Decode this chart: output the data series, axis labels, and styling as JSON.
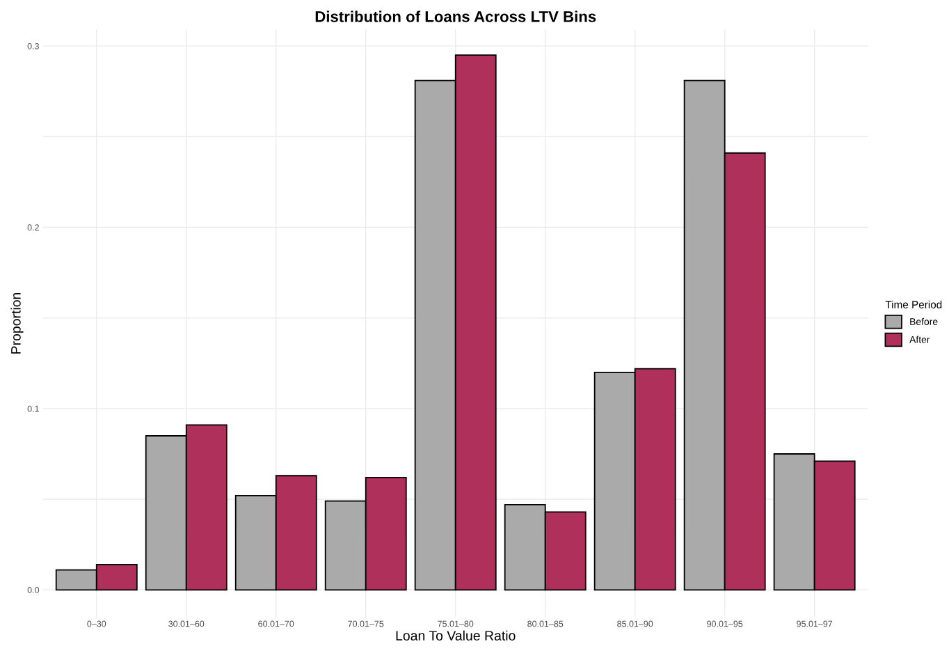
{
  "chart_data": {
    "type": "bar",
    "title": "Distribution of Loans Across LTV Bins",
    "xlabel": "Loan To Value Ratio",
    "ylabel": "Proportion",
    "legend_title": "Time Period",
    "categories": [
      "0–30",
      "30.01–60",
      "60.01–70",
      "70.01–75",
      "75.01–80",
      "80.01–85",
      "85.01–90",
      "90.01–95",
      "95.01–97"
    ],
    "series": [
      {
        "name": "Before",
        "color": "#aaaaaa",
        "values": [
          0.011,
          0.085,
          0.052,
          0.049,
          0.281,
          0.047,
          0.12,
          0.281,
          0.075
        ]
      },
      {
        "name": "After",
        "color": "#b0305c",
        "values": [
          0.014,
          0.091,
          0.063,
          0.062,
          0.295,
          0.043,
          0.122,
          0.241,
          0.071
        ]
      }
    ],
    "ylim": [
      -0.015,
      0.309
    ],
    "yticks": [
      {
        "value": 0.0,
        "label": "0.0"
      },
      {
        "value": 0.05,
        "label": null
      },
      {
        "value": 0.1,
        "label": "0.1"
      },
      {
        "value": 0.15,
        "label": null
      },
      {
        "value": 0.2,
        "label": "0.2"
      },
      {
        "value": 0.25,
        "label": null
      },
      {
        "value": 0.3,
        "label": "0.3"
      }
    ],
    "grid": true,
    "legend": "right"
  }
}
